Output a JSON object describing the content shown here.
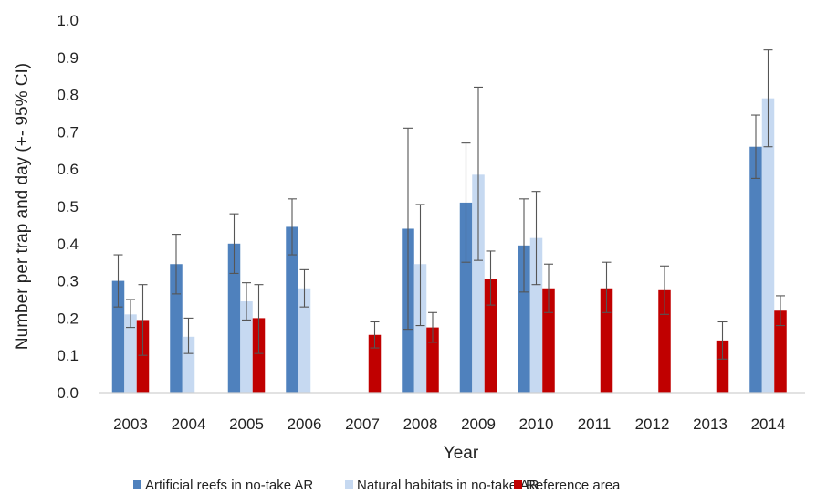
{
  "chart_data": {
    "type": "bar",
    "xlabel": "Year",
    "ylabel": "Number per trap and day (+- 95% CI)",
    "ylim": [
      0,
      1.0
    ],
    "yticks": [
      "0.0",
      "0.1",
      "0.2",
      "0.3",
      "0.4",
      "0.5",
      "0.6",
      "0.7",
      "0.8",
      "0.9",
      "1.0"
    ],
    "grid": false,
    "legend_position": "bottom",
    "categories": [
      "2003",
      "2004",
      "2005",
      "2006",
      "2007",
      "2008",
      "2009",
      "2010",
      "2011",
      "2012",
      "2013",
      "2014"
    ],
    "series": [
      {
        "name": "Artificial reefs in no-take AR",
        "color": "#4f81bd",
        "values": [
          0.3,
          0.345,
          0.4,
          0.445,
          null,
          0.44,
          0.51,
          0.395,
          null,
          null,
          null,
          0.66
        ],
        "ci_low": [
          0.23,
          0.265,
          0.32,
          0.37,
          null,
          0.17,
          0.35,
          0.27,
          null,
          null,
          null,
          0.575
        ],
        "ci_high": [
          0.37,
          0.425,
          0.48,
          0.52,
          null,
          0.71,
          0.67,
          0.52,
          null,
          null,
          null,
          0.745
        ]
      },
      {
        "name": "Natural habitats in no-take AR",
        "color": "#c6d9f1",
        "values": [
          0.21,
          0.15,
          0.245,
          0.28,
          null,
          0.345,
          0.585,
          0.415,
          null,
          null,
          null,
          0.79
        ],
        "ci_low": [
          0.175,
          0.105,
          0.195,
          0.23,
          null,
          0.18,
          0.355,
          0.29,
          null,
          null,
          null,
          0.66
        ],
        "ci_high": [
          0.25,
          0.2,
          0.295,
          0.33,
          null,
          0.505,
          0.82,
          0.54,
          null,
          null,
          null,
          0.92
        ]
      },
      {
        "name": "Reference area",
        "color": "#c00000",
        "values": [
          0.195,
          null,
          0.2,
          null,
          0.155,
          0.175,
          0.305,
          0.28,
          0.28,
          0.275,
          0.14,
          0.22
        ],
        "ci_low": [
          0.1,
          null,
          0.105,
          null,
          0.12,
          0.135,
          0.235,
          0.215,
          0.215,
          0.21,
          0.09,
          0.18
        ],
        "ci_high": [
          0.29,
          null,
          0.29,
          null,
          0.19,
          0.215,
          0.38,
          0.345,
          0.35,
          0.34,
          0.19,
          0.26
        ]
      }
    ]
  }
}
